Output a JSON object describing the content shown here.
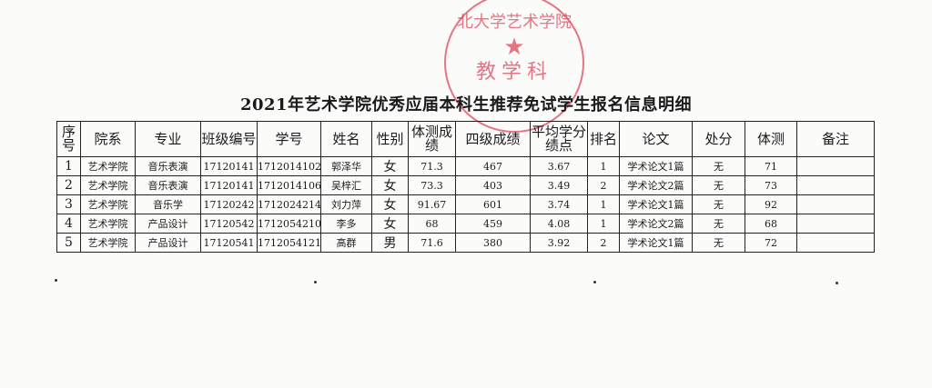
{
  "title": "2021年艺术学院优秀应届本科生推荐免试学生报名信息明细",
  "stamp": {
    "top": "北大学艺术学院",
    "bottom": "教学科",
    "color": "#dc3c50"
  },
  "headers": [
    "序号",
    "院系",
    "专业",
    "班级编号",
    "学号",
    "姓名",
    "性别",
    "体测成绩",
    "四级成绩",
    "平均学分绩点",
    "排名",
    "论文",
    "处分",
    "体测",
    "备注"
  ],
  "rows": [
    [
      "1",
      "艺术学院",
      "音乐表演",
      "17120141",
      "1712014102",
      "郭泽华",
      "女",
      "71.3",
      "467",
      "3.67",
      "1",
      "学术论文1篇",
      "无",
      "71",
      ""
    ],
    [
      "2",
      "艺术学院",
      "音乐表演",
      "17120141",
      "1712014106",
      "吴梓汇",
      "女",
      "73.3",
      "403",
      "3.49",
      "2",
      "学术论文2篇",
      "无",
      "73",
      ""
    ],
    [
      "3",
      "艺术学院",
      "音乐学",
      "17120242",
      "1712024214",
      "刘力萍",
      "女",
      "91.67",
      "601",
      "3.74",
      "1",
      "学术论文1篇",
      "无",
      "92",
      ""
    ],
    [
      "4",
      "艺术学院",
      "产品设计",
      "17120542",
      "1712054210",
      "李多",
      "女",
      "68",
      "459",
      "4.08",
      "1",
      "学术论文2篇",
      "无",
      "68",
      ""
    ],
    [
      "5",
      "艺术学院",
      "产品设计",
      "17120541",
      "1712054121",
      "高群",
      "男",
      "71.6",
      "380",
      "3.92",
      "2",
      "学术论文1篇",
      "无",
      "72",
      ""
    ]
  ]
}
